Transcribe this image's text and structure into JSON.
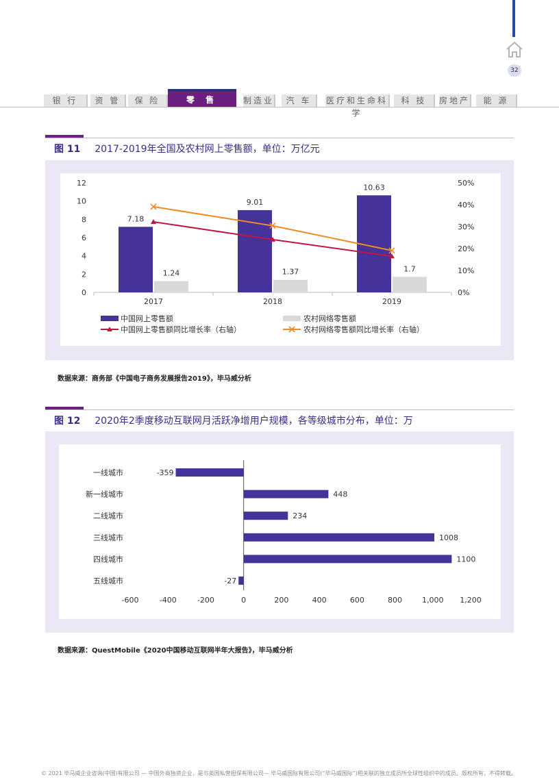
{
  "header": {
    "page_number": "32",
    "tabs": [
      {
        "label": "银 行",
        "active": false
      },
      {
        "label": "资 管",
        "active": false
      },
      {
        "label": "保 险",
        "active": false
      },
      {
        "label": "零 售",
        "active": true
      },
      {
        "label": "制造业",
        "active": false
      },
      {
        "label": "汽 车",
        "active": false
      },
      {
        "label": "医疗和生命科学",
        "active": false
      },
      {
        "label": "科 技",
        "active": false
      },
      {
        "label": "房地产",
        "active": false
      },
      {
        "label": "能 源",
        "active": false
      }
    ]
  },
  "figure11": {
    "number": "图 11",
    "title": "2017-2019年全国及农村网上零售额，单位：万亿元",
    "source": "数据来源：商务部《中国电子商务发展报告2019》，毕马威分析"
  },
  "figure12": {
    "number": "图 12",
    "title": "2020年2季度移动互联网月活跃净增用户规模，各等级城市分布，单位：万",
    "source": "数据来源：QuestMobile《2020中国移动互联网半年大报告》，毕马威分析"
  },
  "footer": {
    "text": "© 2021 毕马威企业咨询(中国)有限公司 — 中国外商独资企业，是与英国私营担保有限公司— 毕马威国际有限公司(“毕马威国际”)相关联的独立成员所全球性组织中的成员。版权所有，不得转载。"
  },
  "colors": {
    "purple_bar": "#45339a",
    "grey_bar": "#d9d9d9",
    "red_line": "#c0163f",
    "orange_line": "#f08a24",
    "accent": "#6b1f7e"
  },
  "chart_data": [
    {
      "type": "bar",
      "categories": [
        "2017",
        "2018",
        "2019"
      ],
      "series": [
        {
          "name": "中国网上零售额",
          "values": [
            7.18,
            9.01,
            10.63
          ],
          "axis": "left",
          "labels": [
            "7.18",
            "9.01",
            "10.63"
          ]
        },
        {
          "name": "农村网络零售额",
          "values": [
            1.24,
            1.37,
            1.7
          ],
          "axis": "left",
          "labels": [
            "1.24",
            "1.37",
            "1.7"
          ]
        },
        {
          "name": "中国网上零售额同比增长率（右轴）",
          "type": "line",
          "values": [
            32.2,
            24.1,
            16.5
          ],
          "axis": "right"
        },
        {
          "name": "农村网络零售额同比增长率（右轴）",
          "type": "line",
          "values": [
            39.1,
            30.4,
            19.1
          ],
          "axis": "right"
        }
      ],
      "ylim": [
        0,
        12
      ],
      "yticks": [
        "0",
        "2",
        "4",
        "6",
        "8",
        "10",
        "12"
      ],
      "y2lim": [
        0,
        50
      ],
      "y2ticks": [
        "0%",
        "10%",
        "20%",
        "30%",
        "40%",
        "50%"
      ],
      "legend_position": "bottom"
    },
    {
      "type": "bar",
      "orientation": "horizontal",
      "categories": [
        "一线城市",
        "新一线城市",
        "二线城市",
        "三线城市",
        "四线城市",
        "五线城市"
      ],
      "values": [
        -359,
        448,
        234,
        1008,
        1100,
        -27
      ],
      "labels": [
        "-359",
        "448",
        "234",
        "1008",
        "1100",
        "-27"
      ],
      "xlim": [
        -600,
        1200
      ],
      "xticks": [
        "-600",
        "-400",
        "-200",
        "0",
        "200",
        "400",
        "600",
        "800",
        "1,000",
        "1,200"
      ]
    }
  ]
}
